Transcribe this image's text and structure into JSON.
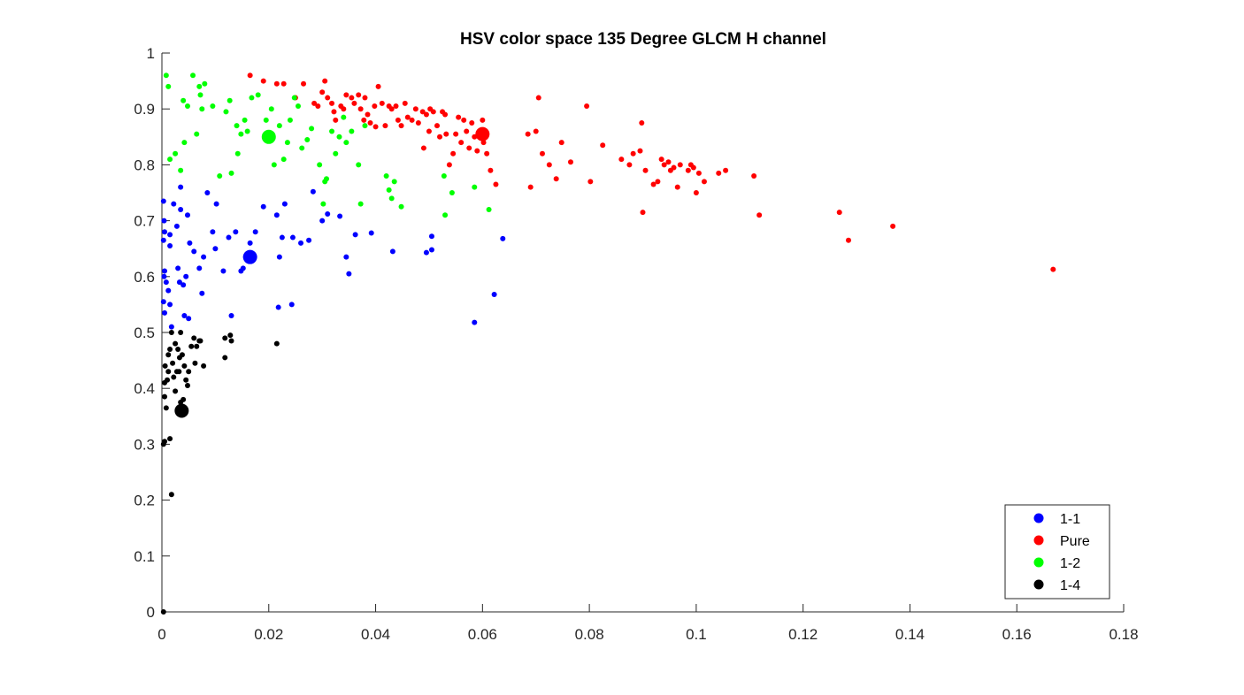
{
  "chart_data": {
    "type": "scatter",
    "title": "HSV color space 135 Degree GLCM H channel",
    "xlabel": "",
    "ylabel": "",
    "xlim": [
      0,
      0.18
    ],
    "ylim": [
      0,
      1
    ],
    "xticks": [
      "0",
      "0.02",
      "0.04",
      "0.06",
      "0.08",
      "0.1",
      "0.12",
      "0.14",
      "0.16",
      "0.18"
    ],
    "yticks": [
      "0",
      "0.1",
      "0.2",
      "0.3",
      "0.4",
      "0.5",
      "0.6",
      "0.7",
      "0.8",
      "0.9",
      "1"
    ],
    "grid": false,
    "legend_position": "bottom-right",
    "series": [
      {
        "name": "1-1",
        "color": "#0000ff",
        "centroid": [
          0.0165,
          0.635
        ],
        "points": [
          [
            0.0003,
            0.735
          ],
          [
            0.0004,
            0.7
          ],
          [
            0.0005,
            0.68
          ],
          [
            0.0003,
            0.665
          ],
          [
            0.0005,
            0.61
          ],
          [
            0.0004,
            0.6
          ],
          [
            0.0003,
            0.555
          ],
          [
            0.0005,
            0.535
          ],
          [
            0.0008,
            0.59
          ],
          [
            0.0012,
            0.575
          ],
          [
            0.0015,
            0.55
          ],
          [
            0.0018,
            0.51
          ],
          [
            0.0015,
            0.655
          ],
          [
            0.0015,
            0.675
          ],
          [
            0.0022,
            0.73
          ],
          [
            0.0028,
            0.69
          ],
          [
            0.003,
            0.615
          ],
          [
            0.0033,
            0.59
          ],
          [
            0.0035,
            0.76
          ],
          [
            0.0035,
            0.72
          ],
          [
            0.004,
            0.585
          ],
          [
            0.0042,
            0.53
          ],
          [
            0.0045,
            0.6
          ],
          [
            0.0048,
            0.71
          ],
          [
            0.005,
            0.525
          ],
          [
            0.0052,
            0.66
          ],
          [
            0.006,
            0.645
          ],
          [
            0.007,
            0.615
          ],
          [
            0.0075,
            0.57
          ],
          [
            0.0078,
            0.635
          ],
          [
            0.0085,
            0.75
          ],
          [
            0.0095,
            0.68
          ],
          [
            0.01,
            0.65
          ],
          [
            0.0102,
            0.73
          ],
          [
            0.0115,
            0.61
          ],
          [
            0.0125,
            0.67
          ],
          [
            0.013,
            0.53
          ],
          [
            0.0138,
            0.68
          ],
          [
            0.0148,
            0.61
          ],
          [
            0.0152,
            0.615
          ],
          [
            0.0165,
            0.66
          ],
          [
            0.0175,
            0.68
          ],
          [
            0.019,
            0.725
          ],
          [
            0.0215,
            0.71
          ],
          [
            0.0218,
            0.545
          ],
          [
            0.022,
            0.635
          ],
          [
            0.0225,
            0.67
          ],
          [
            0.023,
            0.73
          ],
          [
            0.0243,
            0.55
          ],
          [
            0.0245,
            0.67
          ],
          [
            0.026,
            0.66
          ],
          [
            0.0275,
            0.665
          ],
          [
            0.0283,
            0.752
          ],
          [
            0.03,
            0.7
          ],
          [
            0.031,
            0.712
          ],
          [
            0.0333,
            0.708
          ],
          [
            0.0345,
            0.635
          ],
          [
            0.035,
            0.605
          ],
          [
            0.0362,
            0.675
          ],
          [
            0.0392,
            0.678
          ],
          [
            0.0432,
            0.645
          ],
          [
            0.0495,
            0.643
          ],
          [
            0.0505,
            0.672
          ],
          [
            0.0505,
            0.648
          ],
          [
            0.0585,
            0.518
          ],
          [
            0.0622,
            0.568
          ],
          [
            0.0638,
            0.668
          ]
        ]
      },
      {
        "name": "Pure",
        "color": "#ff0000",
        "centroid": [
          0.06,
          0.855
        ],
        "points": [
          [
            0.0165,
            0.96
          ],
          [
            0.019,
            0.95
          ],
          [
            0.0215,
            0.945
          ],
          [
            0.0228,
            0.945
          ],
          [
            0.025,
            0.92
          ],
          [
            0.0265,
            0.945
          ],
          [
            0.0285,
            0.91
          ],
          [
            0.0292,
            0.905
          ],
          [
            0.03,
            0.93
          ],
          [
            0.0305,
            0.95
          ],
          [
            0.031,
            0.92
          ],
          [
            0.0318,
            0.91
          ],
          [
            0.0322,
            0.895
          ],
          [
            0.0325,
            0.88
          ],
          [
            0.0335,
            0.905
          ],
          [
            0.034,
            0.9
          ],
          [
            0.0345,
            0.925
          ],
          [
            0.0355,
            0.92
          ],
          [
            0.036,
            0.91
          ],
          [
            0.0368,
            0.925
          ],
          [
            0.0372,
            0.9
          ],
          [
            0.0378,
            0.88
          ],
          [
            0.038,
            0.92
          ],
          [
            0.0385,
            0.89
          ],
          [
            0.039,
            0.875
          ],
          [
            0.0398,
            0.905
          ],
          [
            0.04,
            0.868
          ],
          [
            0.0405,
            0.94
          ],
          [
            0.0412,
            0.91
          ],
          [
            0.0418,
            0.87
          ],
          [
            0.0425,
            0.905
          ],
          [
            0.043,
            0.9
          ],
          [
            0.0438,
            0.905
          ],
          [
            0.0442,
            0.88
          ],
          [
            0.0448,
            0.87
          ],
          [
            0.0455,
            0.91
          ],
          [
            0.046,
            0.885
          ],
          [
            0.0468,
            0.88
          ],
          [
            0.0475,
            0.9
          ],
          [
            0.048,
            0.875
          ],
          [
            0.0488,
            0.895
          ],
          [
            0.049,
            0.83
          ],
          [
            0.0495,
            0.89
          ],
          [
            0.05,
            0.86
          ],
          [
            0.0502,
            0.9
          ],
          [
            0.0508,
            0.895
          ],
          [
            0.0515,
            0.87
          ],
          [
            0.052,
            0.85
          ],
          [
            0.0525,
            0.895
          ],
          [
            0.053,
            0.89
          ],
          [
            0.0532,
            0.855
          ],
          [
            0.0538,
            0.8
          ],
          [
            0.0545,
            0.82
          ],
          [
            0.055,
            0.855
          ],
          [
            0.0555,
            0.885
          ],
          [
            0.056,
            0.84
          ],
          [
            0.0565,
            0.88
          ],
          [
            0.057,
            0.86
          ],
          [
            0.0575,
            0.83
          ],
          [
            0.058,
            0.875
          ],
          [
            0.0585,
            0.85
          ],
          [
            0.059,
            0.825
          ],
          [
            0.0595,
            0.86
          ],
          [
            0.06,
            0.88
          ],
          [
            0.0602,
            0.84
          ],
          [
            0.0608,
            0.82
          ],
          [
            0.0615,
            0.79
          ],
          [
            0.0625,
            0.765
          ],
          [
            0.0685,
            0.855
          ],
          [
            0.069,
            0.76
          ],
          [
            0.07,
            0.86
          ],
          [
            0.0705,
            0.92
          ],
          [
            0.0712,
            0.82
          ],
          [
            0.0725,
            0.8
          ],
          [
            0.0738,
            0.775
          ],
          [
            0.0748,
            0.84
          ],
          [
            0.0765,
            0.805
          ],
          [
            0.0795,
            0.905
          ],
          [
            0.0802,
            0.77
          ],
          [
            0.0825,
            0.835
          ],
          [
            0.086,
            0.81
          ],
          [
            0.0875,
            0.8
          ],
          [
            0.0882,
            0.82
          ],
          [
            0.0895,
            0.825
          ],
          [
            0.0898,
            0.875
          ],
          [
            0.09,
            0.715
          ],
          [
            0.0905,
            0.79
          ],
          [
            0.092,
            0.765
          ],
          [
            0.0928,
            0.77
          ],
          [
            0.0935,
            0.81
          ],
          [
            0.094,
            0.8
          ],
          [
            0.0948,
            0.805
          ],
          [
            0.0952,
            0.79
          ],
          [
            0.0958,
            0.795
          ],
          [
            0.0965,
            0.76
          ],
          [
            0.097,
            0.8
          ],
          [
            0.0985,
            0.79
          ],
          [
            0.099,
            0.8
          ],
          [
            0.0995,
            0.795
          ],
          [
            0.1,
            0.75
          ],
          [
            0.1005,
            0.785
          ],
          [
            0.1015,
            0.77
          ],
          [
            0.1042,
            0.785
          ],
          [
            0.1055,
            0.79
          ],
          [
            0.1108,
            0.78
          ],
          [
            0.1118,
            0.71
          ],
          [
            0.1268,
            0.715
          ],
          [
            0.1285,
            0.665
          ],
          [
            0.1368,
            0.69
          ],
          [
            0.1668,
            0.613
          ]
        ]
      },
      {
        "name": "1-2",
        "color": "#00ff00",
        "centroid": [
          0.02,
          0.85
        ],
        "points": [
          [
            0.0008,
            0.96
          ],
          [
            0.0012,
            0.94
          ],
          [
            0.0015,
            0.81
          ],
          [
            0.0025,
            0.82
          ],
          [
            0.0035,
            0.79
          ],
          [
            0.004,
            0.915
          ],
          [
            0.0042,
            0.84
          ],
          [
            0.0048,
            0.905
          ],
          [
            0.0058,
            0.96
          ],
          [
            0.0065,
            0.855
          ],
          [
            0.007,
            0.94
          ],
          [
            0.0072,
            0.925
          ],
          [
            0.0075,
            0.9
          ],
          [
            0.008,
            0.945
          ],
          [
            0.0095,
            0.905
          ],
          [
            0.0108,
            0.78
          ],
          [
            0.012,
            0.895
          ],
          [
            0.0127,
            0.915
          ],
          [
            0.013,
            0.785
          ],
          [
            0.014,
            0.87
          ],
          [
            0.0142,
            0.82
          ],
          [
            0.0148,
            0.855
          ],
          [
            0.0155,
            0.88
          ],
          [
            0.016,
            0.86
          ],
          [
            0.0168,
            0.92
          ],
          [
            0.018,
            0.925
          ],
          [
            0.0195,
            0.88
          ],
          [
            0.0205,
            0.9
          ],
          [
            0.021,
            0.8
          ],
          [
            0.022,
            0.87
          ],
          [
            0.0228,
            0.81
          ],
          [
            0.0235,
            0.84
          ],
          [
            0.024,
            0.88
          ],
          [
            0.0248,
            0.92
          ],
          [
            0.0255,
            0.905
          ],
          [
            0.0262,
            0.83
          ],
          [
            0.0272,
            0.845
          ],
          [
            0.028,
            0.865
          ],
          [
            0.0295,
            0.8
          ],
          [
            0.0302,
            0.73
          ],
          [
            0.0305,
            0.77
          ],
          [
            0.0308,
            0.775
          ],
          [
            0.0318,
            0.86
          ],
          [
            0.0325,
            0.82
          ],
          [
            0.0332,
            0.85
          ],
          [
            0.034,
            0.885
          ],
          [
            0.0345,
            0.84
          ],
          [
            0.0355,
            0.86
          ],
          [
            0.0368,
            0.8
          ],
          [
            0.0372,
            0.73
          ],
          [
            0.038,
            0.87
          ],
          [
            0.042,
            0.78
          ],
          [
            0.0425,
            0.755
          ],
          [
            0.043,
            0.74
          ],
          [
            0.0435,
            0.77
          ],
          [
            0.0448,
            0.725
          ],
          [
            0.0528,
            0.78
          ],
          [
            0.053,
            0.71
          ],
          [
            0.0543,
            0.75
          ],
          [
            0.0585,
            0.76
          ],
          [
            0.0612,
            0.72
          ]
        ]
      },
      {
        "name": "1-4",
        "color": "#000000",
        "centroid": [
          0.0037,
          0.36
        ],
        "points": [
          [
            0.0003,
            0.0
          ],
          [
            0.0003,
            0.3
          ],
          [
            0.0005,
            0.385
          ],
          [
            0.0005,
            0.41
          ],
          [
            0.0006,
            0.44
          ],
          [
            0.0005,
            0.305
          ],
          [
            0.0008,
            0.365
          ],
          [
            0.001,
            0.415
          ],
          [
            0.0012,
            0.43
          ],
          [
            0.0012,
            0.46
          ],
          [
            0.0015,
            0.47
          ],
          [
            0.0015,
            0.31
          ],
          [
            0.0018,
            0.21
          ],
          [
            0.0018,
            0.5
          ],
          [
            0.002,
            0.445
          ],
          [
            0.0022,
            0.42
          ],
          [
            0.0025,
            0.395
          ],
          [
            0.0025,
            0.48
          ],
          [
            0.0028,
            0.43
          ],
          [
            0.003,
            0.47
          ],
          [
            0.0032,
            0.43
          ],
          [
            0.0033,
            0.455
          ],
          [
            0.0035,
            0.5
          ],
          [
            0.0035,
            0.375
          ],
          [
            0.0038,
            0.46
          ],
          [
            0.004,
            0.38
          ],
          [
            0.0042,
            0.44
          ],
          [
            0.0045,
            0.415
          ],
          [
            0.0048,
            0.405
          ],
          [
            0.005,
            0.43
          ],
          [
            0.0055,
            0.475
          ],
          [
            0.006,
            0.49
          ],
          [
            0.0062,
            0.445
          ],
          [
            0.0065,
            0.475
          ],
          [
            0.007,
            0.485
          ],
          [
            0.0072,
            0.485
          ],
          [
            0.0078,
            0.44
          ],
          [
            0.0118,
            0.49
          ],
          [
            0.0118,
            0.455
          ],
          [
            0.0128,
            0.495
          ],
          [
            0.013,
            0.485
          ],
          [
            0.0215,
            0.48
          ]
        ]
      }
    ]
  }
}
